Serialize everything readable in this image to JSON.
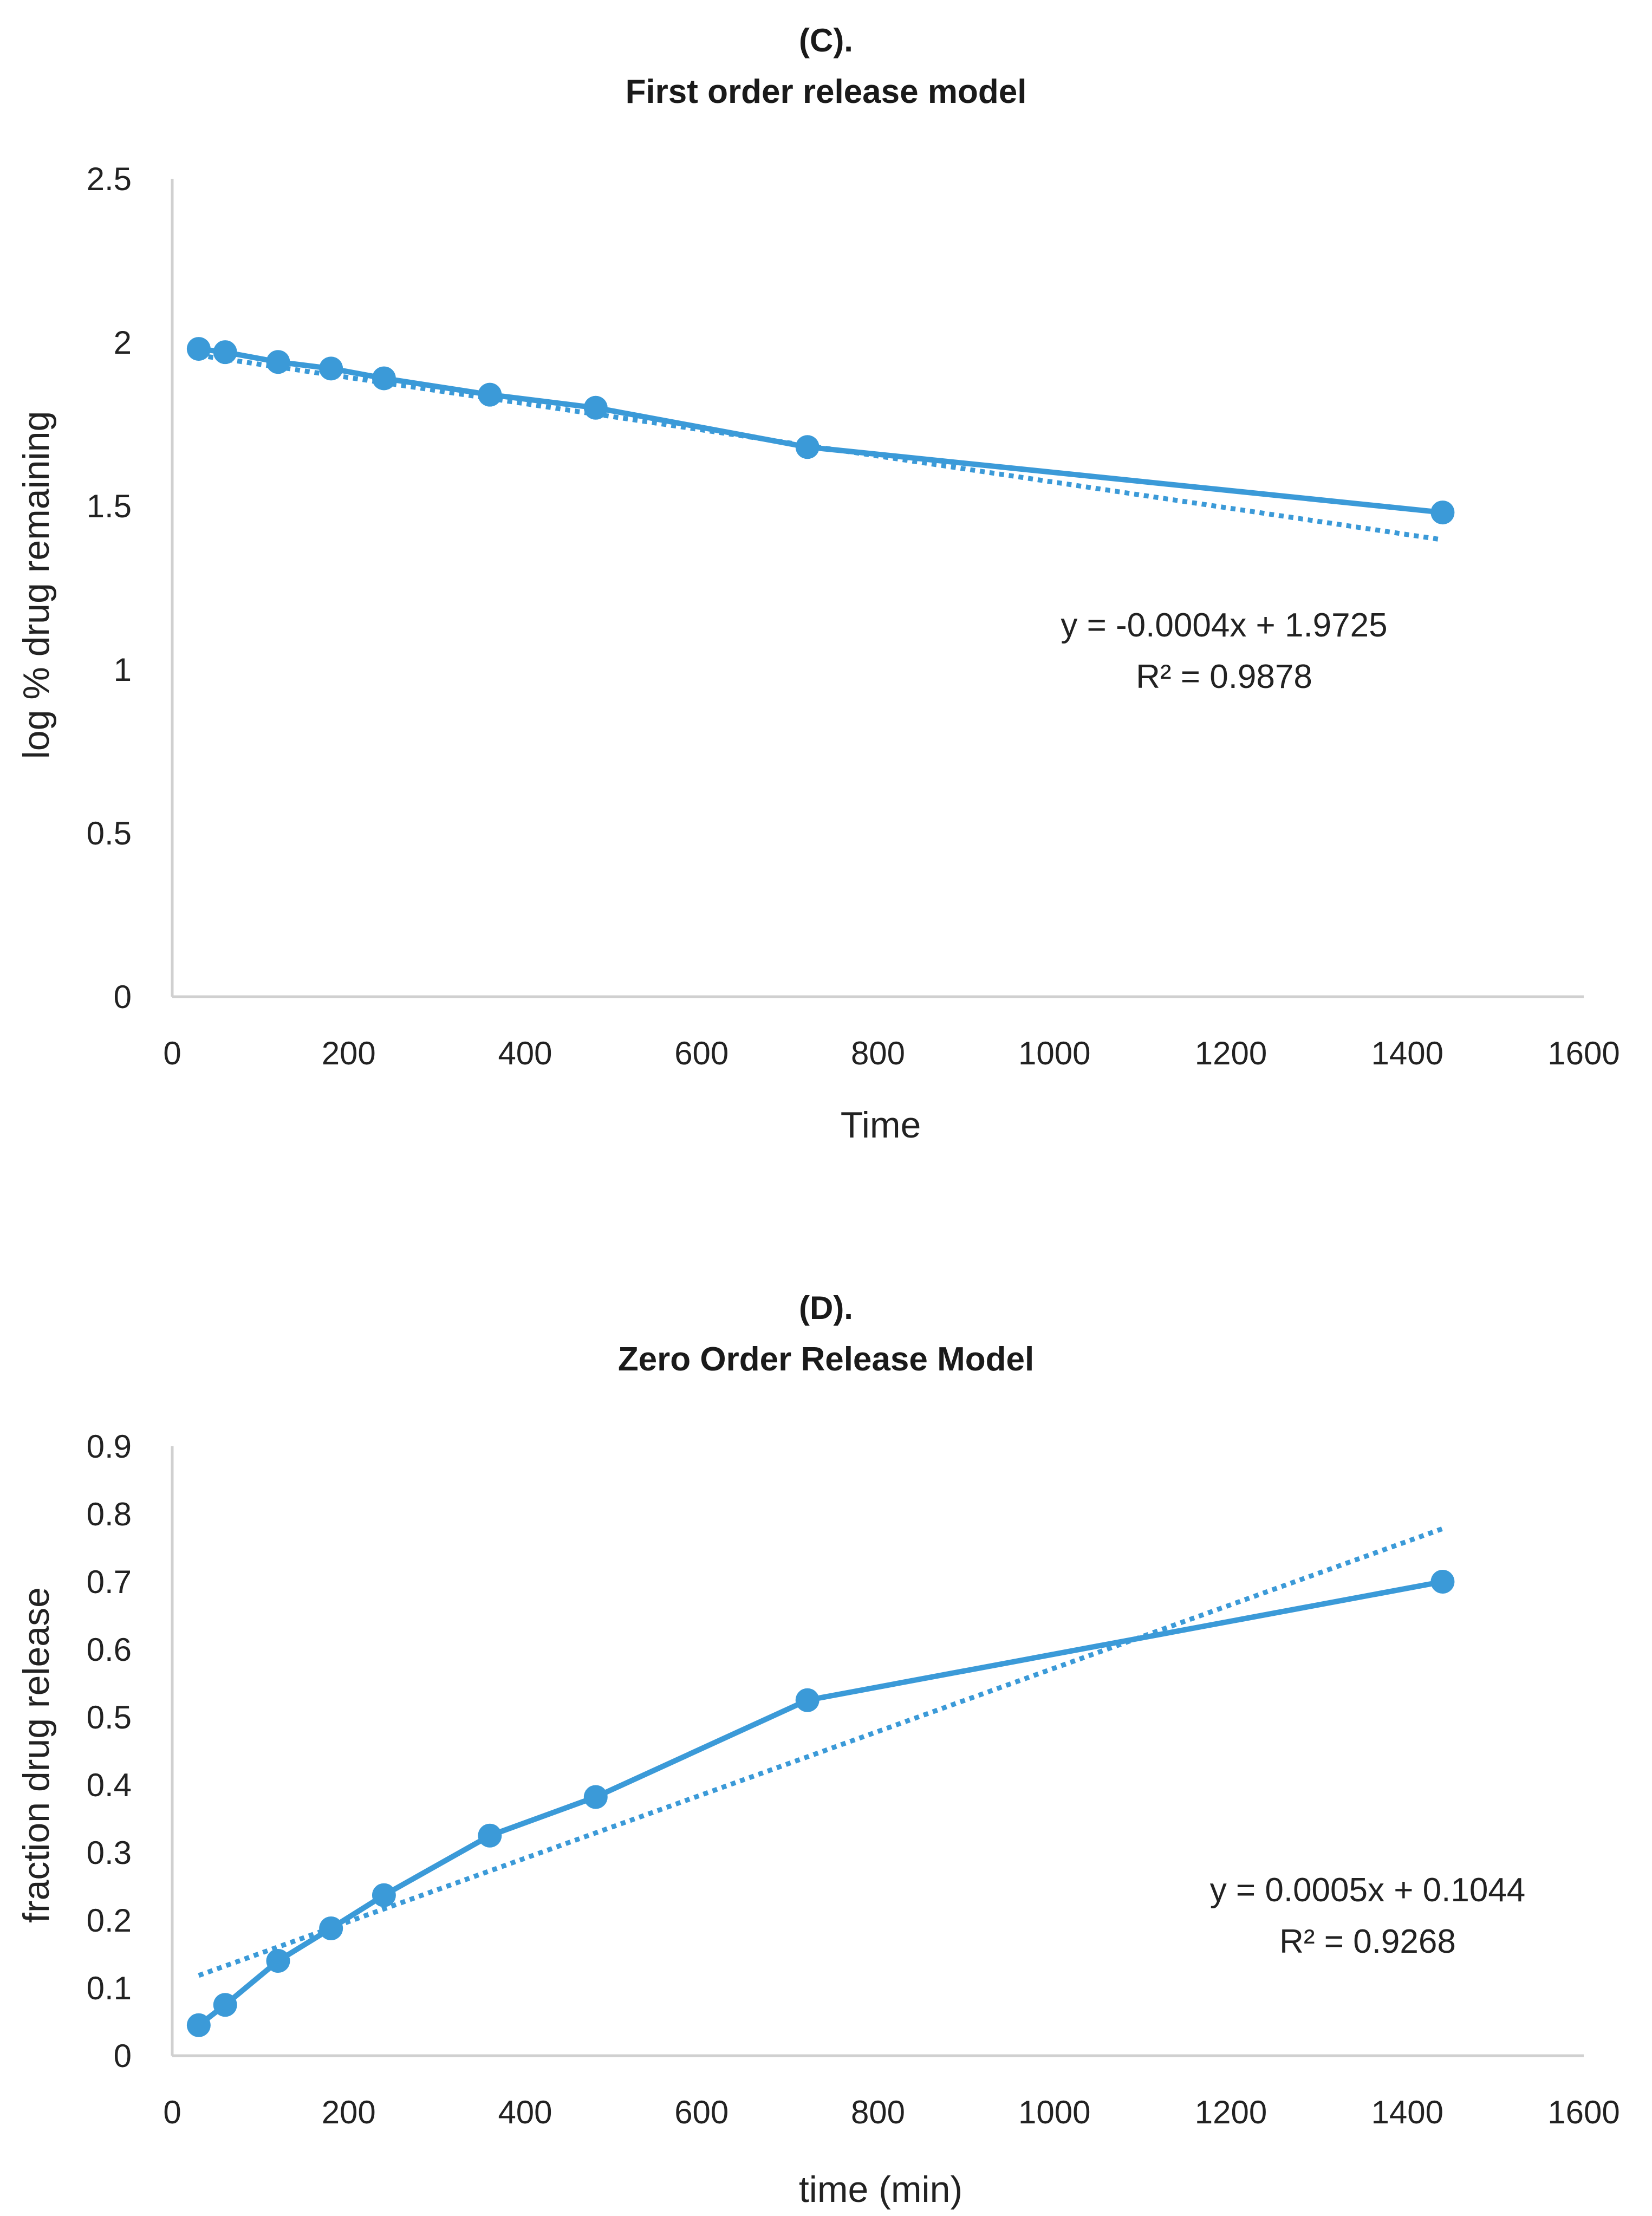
{
  "colors": {
    "series": "#3b9ad8",
    "trendline": "#3b9ad8",
    "axis": "#d0d0d0",
    "text": "#222222"
  },
  "chart_data": [
    {
      "type": "line",
      "label": "(C).",
      "title": "First order release model",
      "xlabel": "Time",
      "ylabel": "log % drug remaining",
      "xlim": [
        0,
        1600
      ],
      "ylim": [
        0,
        2.5
      ],
      "xticks": [
        "0",
        "200",
        "400",
        "600",
        "800",
        "1000",
        "1200",
        "1400",
        "1600"
      ],
      "yticks": [
        "0",
        "0.5",
        "1",
        "1.5",
        "2",
        "2.5"
      ],
      "grid": false,
      "series": [
        {
          "name": "log % drug remaining",
          "x": [
            30,
            60,
            120,
            180,
            240,
            360,
            480,
            720,
            1440
          ],
          "y": [
            1.98,
            1.97,
            1.94,
            1.92,
            1.89,
            1.84,
            1.8,
            1.68,
            1.48
          ]
        }
      ],
      "trendline": {
        "type": "linear",
        "slope": -0.0004,
        "intercept": 1.9725,
        "x_range": [
          30,
          1440
        ]
      },
      "equation": "y = -0.0004x + 1.9725",
      "r2_text": "R² = 0.9878"
    },
    {
      "type": "line",
      "label": "(D).",
      "title": "Zero Order Release Model",
      "xlabel": "time (min)",
      "ylabel": "fraction drug release",
      "xlim": [
        0,
        1600
      ],
      "ylim": [
        0,
        0.9
      ],
      "xticks": [
        "0",
        "200",
        "400",
        "600",
        "800",
        "1000",
        "1200",
        "1400",
        "1600"
      ],
      "yticks": [
        "0",
        "0.1",
        "0.2",
        "0.3",
        "0.4",
        "0.5",
        "0.6",
        "0.7",
        "0.8",
        "0.9"
      ],
      "grid": false,
      "series": [
        {
          "name": "fraction drug release",
          "x": [
            30,
            60,
            120,
            180,
            240,
            360,
            480,
            720,
            1440
          ],
          "y": [
            0.045,
            0.075,
            0.14,
            0.188,
            0.237,
            0.325,
            0.382,
            0.525,
            0.7
          ]
        }
      ],
      "trendline": {
        "type": "linear",
        "slope": 0.000468,
        "intercept": 0.1044,
        "x_range": [
          30,
          1440
        ]
      },
      "equation": "y = 0.0005x + 0.1044",
      "r2_text": "R² = 0.9268"
    }
  ]
}
